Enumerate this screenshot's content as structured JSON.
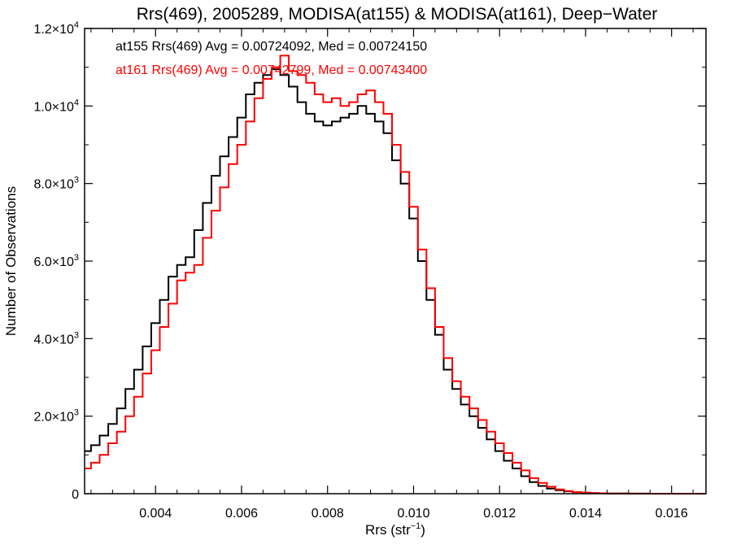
{
  "chart_data": {
    "type": "line",
    "title": "Rrs(469), 2005289, MODISA(at155) & MODISA(at161), Deep−Water",
    "xlabel": "Rrs (str",
    "xlabel_sup": "−1",
    "xlabel_close": ")",
    "ylabel": "Number of Observations",
    "xlim": [
      0.00235,
      0.0168
    ],
    "ylim": [
      0,
      12000
    ],
    "grid": false,
    "x_ticks": [
      {
        "value": 0.004,
        "label": "0.004"
      },
      {
        "value": 0.006,
        "label": "0.006"
      },
      {
        "value": 0.008,
        "label": "0.008"
      },
      {
        "value": 0.01,
        "label": "0.010"
      },
      {
        "value": 0.012,
        "label": "0.012"
      },
      {
        "value": 0.014,
        "label": "0.014"
      },
      {
        "value": 0.016,
        "label": "0.016"
      }
    ],
    "y_ticks": [
      {
        "value": 0,
        "mant": "0",
        "exp": ""
      },
      {
        "value": 2000,
        "mant": "2.0×10",
        "exp": "3"
      },
      {
        "value": 4000,
        "mant": "4.0×10",
        "exp": "3"
      },
      {
        "value": 6000,
        "mant": "6.0×10",
        "exp": "3"
      },
      {
        "value": 8000,
        "mant": "8.0×10",
        "exp": "3"
      },
      {
        "value": 10000,
        "mant": "1.0×10",
        "exp": "4"
      },
      {
        "value": 12000,
        "mant": "1.2×10",
        "exp": "4"
      }
    ],
    "annotations": [
      {
        "text": "at155 Rrs(469) Avg = 0.00724092, Med = 0.00724150",
        "color": "#000000"
      },
      {
        "text": "at161 Rrs(469) Avg = 0.00742799, Med = 0.00743400",
        "color": "#ff0000"
      }
    ],
    "series": [
      {
        "color": "#000000",
        "x": [
          0.00235,
          0.0025,
          0.0027,
          0.0029,
          0.0031,
          0.0033,
          0.0035,
          0.0037,
          0.0039,
          0.0041,
          0.0043,
          0.0045,
          0.0047,
          0.0049,
          0.0051,
          0.0053,
          0.0055,
          0.0057,
          0.0059,
          0.0061,
          0.0063,
          0.0065,
          0.0067,
          0.0069,
          0.0071,
          0.0073,
          0.0075,
          0.0077,
          0.0079,
          0.0081,
          0.0083,
          0.0085,
          0.0087,
          0.0089,
          0.0091,
          0.0093,
          0.0095,
          0.0097,
          0.0099,
          0.0101,
          0.0103,
          0.0105,
          0.0107,
          0.0109,
          0.0111,
          0.0113,
          0.0115,
          0.0117,
          0.0119,
          0.0121,
          0.0123,
          0.0125,
          0.0127,
          0.0129,
          0.0131,
          0.0133,
          0.0135,
          0.0137,
          0.0139,
          0.0141,
          0.0143,
          0.0145,
          0.015,
          0.0155,
          0.016,
          0.0168
        ],
        "values": [
          1100,
          1250,
          1500,
          1800,
          2200,
          2700,
          3200,
          3800,
          4400,
          5000,
          5600,
          5900,
          6100,
          6800,
          7500,
          8200,
          8700,
          9200,
          9700,
          10300,
          10600,
          10800,
          10950,
          10800,
          10500,
          10100,
          9800,
          9600,
          9500,
          9600,
          9700,
          9800,
          10000,
          9800,
          9600,
          9300,
          8600,
          8000,
          7100,
          6000,
          5000,
          4100,
          3200,
          2700,
          2300,
          2000,
          1700,
          1400,
          1100,
          850,
          650,
          450,
          300,
          200,
          130,
          90,
          60,
          40,
          25,
          15,
          10,
          5,
          2,
          0,
          0,
          0
        ]
      },
      {
        "color": "#ff0000",
        "x": [
          0.00235,
          0.0025,
          0.0027,
          0.0029,
          0.0031,
          0.0033,
          0.0035,
          0.0037,
          0.0039,
          0.0041,
          0.0043,
          0.0045,
          0.0047,
          0.0049,
          0.0051,
          0.0053,
          0.0055,
          0.0057,
          0.0059,
          0.0061,
          0.0063,
          0.0065,
          0.0067,
          0.0069,
          0.0071,
          0.0073,
          0.0075,
          0.0077,
          0.0079,
          0.0081,
          0.0083,
          0.0085,
          0.0087,
          0.0089,
          0.0091,
          0.0093,
          0.0095,
          0.0097,
          0.0099,
          0.0101,
          0.0103,
          0.0105,
          0.0107,
          0.0109,
          0.0111,
          0.0113,
          0.0115,
          0.0117,
          0.0119,
          0.0121,
          0.0123,
          0.0125,
          0.0127,
          0.0129,
          0.0131,
          0.0133,
          0.0135,
          0.0137,
          0.0139,
          0.0141,
          0.0143,
          0.0145,
          0.015,
          0.0155,
          0.016,
          0.0168
        ],
        "values": [
          650,
          800,
          1000,
          1300,
          1600,
          2000,
          2500,
          3100,
          3700,
          4300,
          4900,
          5500,
          5700,
          5900,
          6600,
          7300,
          7900,
          8500,
          9000,
          9600,
          10200,
          10700,
          11000,
          11300,
          10900,
          10800,
          10600,
          10300,
          10100,
          10200,
          10000,
          10100,
          10300,
          10400,
          10100,
          9800,
          9000,
          8300,
          7400,
          6300,
          5300,
          4300,
          3500,
          2900,
          2500,
          2200,
          1900,
          1600,
          1300,
          1050,
          800,
          600,
          400,
          280,
          180,
          110,
          70,
          40,
          25,
          15,
          10,
          5,
          2,
          0,
          0,
          0
        ]
      }
    ]
  }
}
